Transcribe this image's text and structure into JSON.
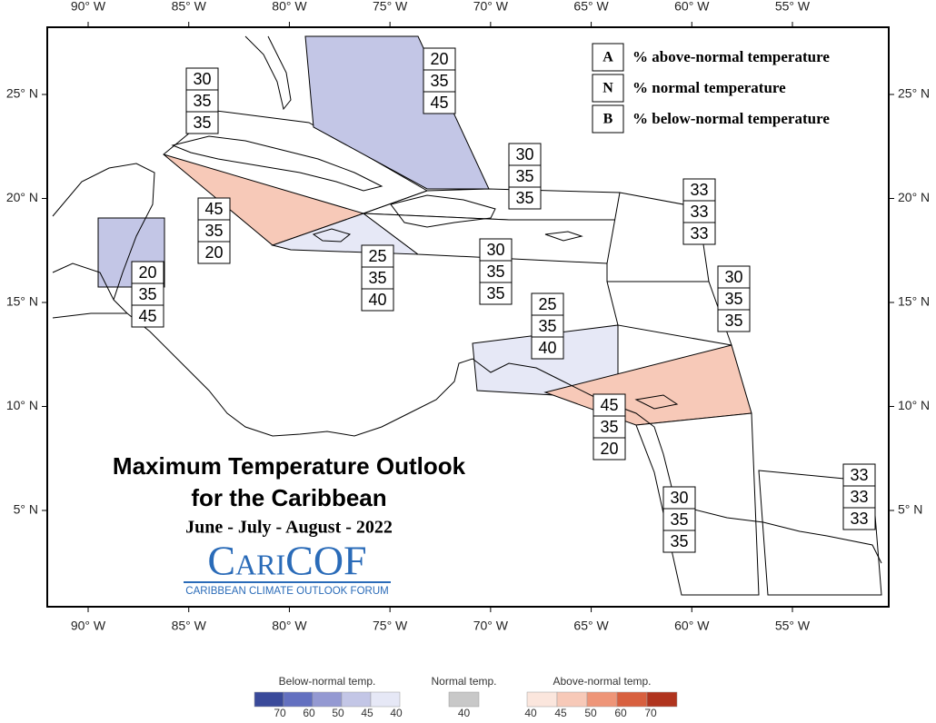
{
  "map": {
    "lon_ticks": [
      {
        "value": -90,
        "label": "90° W"
      },
      {
        "value": -85,
        "label": "85° W"
      },
      {
        "value": -80,
        "label": "80° W"
      },
      {
        "value": -75,
        "label": "75° W"
      },
      {
        "value": -70,
        "label": "70° W"
      },
      {
        "value": -65,
        "label": "65° W"
      },
      {
        "value": -60,
        "label": "60° W"
      },
      {
        "value": -55,
        "label": "55° W"
      }
    ],
    "lat_ticks": [
      {
        "value": 25,
        "label": "25° N"
      },
      {
        "value": 20,
        "label": "20° N"
      },
      {
        "value": 15,
        "label": "15° N"
      },
      {
        "value": 10,
        "label": "10° N"
      },
      {
        "value": 5,
        "label": "5° N"
      }
    ],
    "key": [
      {
        "letter": "A",
        "text": "% above-normal temperature"
      },
      {
        "letter": "N",
        "text": "% normal temperature"
      },
      {
        "letter": "B",
        "text": "% below-normal temperature"
      }
    ],
    "regions": [
      {
        "values": [
          30,
          35,
          35
        ],
        "color": "#ffffff"
      },
      {
        "values": [
          20,
          35,
          45
        ],
        "color": "#c3c6e6"
      },
      {
        "values": [
          30,
          35,
          35
        ],
        "color": "#ffffff"
      },
      {
        "values": [
          45,
          35,
          20
        ],
        "color": "#f7c9b8"
      },
      {
        "values": [
          20,
          35,
          45
        ],
        "color": "#c3c6e6"
      },
      {
        "values": [
          25,
          35,
          40
        ],
        "color": "#e6e8f6"
      },
      {
        "values": [
          30,
          35,
          35
        ],
        "color": "#ffffff"
      },
      {
        "values": [
          33,
          33,
          33
        ],
        "color": "#ffffff"
      },
      {
        "values": [
          30,
          35,
          35
        ],
        "color": "#ffffff"
      },
      {
        "values": [
          25,
          35,
          40
        ],
        "color": "#e6e8f6"
      },
      {
        "values": [
          45,
          35,
          20
        ],
        "color": "#f7c9b8"
      },
      {
        "values": [
          30,
          35,
          35
        ],
        "color": "#ffffff"
      },
      {
        "values": [
          33,
          33,
          33
        ],
        "color": "#ffffff"
      }
    ],
    "title": [
      "Maximum Temperature Outlook",
      "for the Caribbean"
    ],
    "period": "June - July - August - 2022",
    "logo": {
      "name": "CariCOF",
      "subtitle": "CARIBBEAN CLIMATE OUTLOOK FORUM"
    }
  },
  "colorbar": {
    "groups": [
      {
        "title": "Below-normal temp.",
        "colors": [
          "#3a4a9a",
          "#6370c0",
          "#9499d2",
          "#c3c6e6",
          "#e6e8f6"
        ],
        "labels": [
          70,
          60,
          50,
          45,
          40
        ]
      },
      {
        "title": "Normal temp.",
        "colors": [
          "#c8c8c8"
        ],
        "labels": [
          40
        ]
      },
      {
        "title": "Above-normal temp.",
        "colors": [
          "#fbe6dd",
          "#f7c9b8",
          "#ee9578",
          "#d8603f",
          "#b0341e"
        ],
        "labels": [
          40,
          45,
          50,
          60,
          70
        ]
      }
    ]
  }
}
